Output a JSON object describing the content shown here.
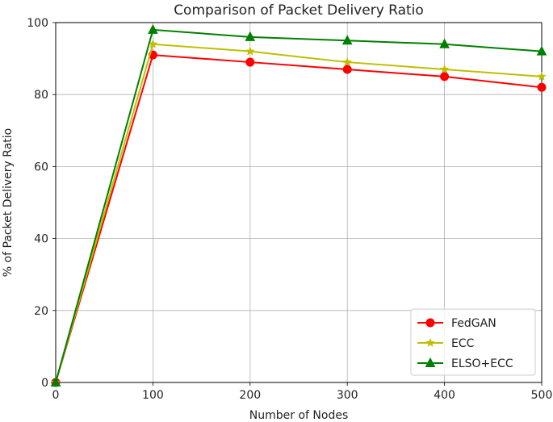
{
  "chart_data": {
    "type": "line",
    "title": "Comparison of Packet Delivery Ratio",
    "xlabel": "Number of Nodes",
    "ylabel": "% of Packet Delivery Ratio",
    "x": [
      0,
      100,
      200,
      300,
      400,
      500
    ],
    "xlim": [
      0,
      500
    ],
    "ylim": [
      0,
      100
    ],
    "xticks": [
      0,
      100,
      200,
      300,
      400,
      500
    ],
    "yticks": [
      0,
      20,
      40,
      60,
      80,
      100
    ],
    "grid": true,
    "legend_position": "lower-right",
    "series": [
      {
        "name": "FedGAN",
        "color": "#ff0000",
        "marker": "circle",
        "values": [
          0,
          91,
          89,
          87,
          85,
          82
        ]
      },
      {
        "name": "ECC",
        "color": "#bfbf00",
        "marker": "star",
        "values": [
          0,
          94,
          92,
          89,
          87,
          85
        ]
      },
      {
        "name": "ELSO+ECC",
        "color": "#008000",
        "marker": "triangle",
        "values": [
          0,
          98,
          96,
          95,
          94,
          92
        ]
      }
    ]
  }
}
